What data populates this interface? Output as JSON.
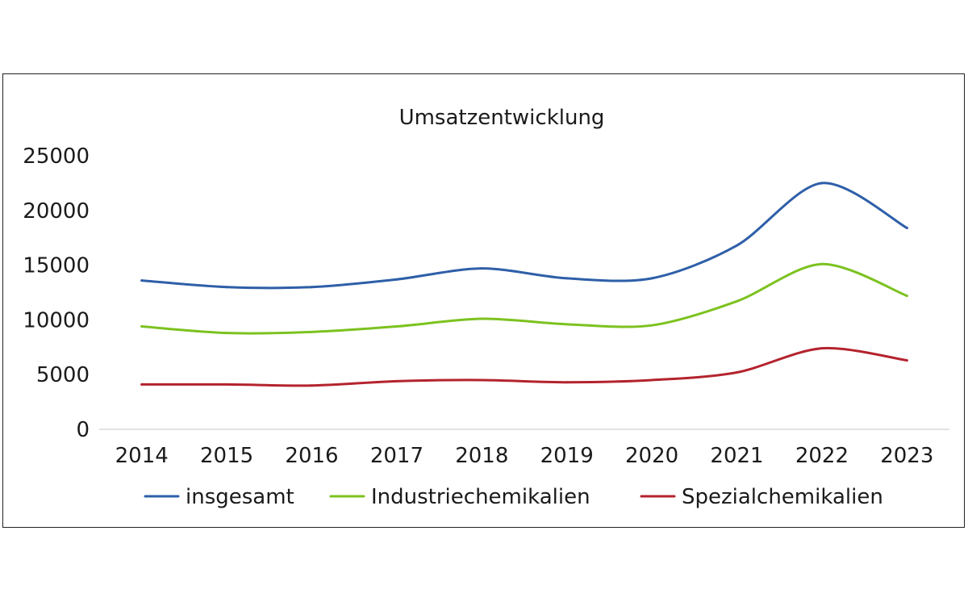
{
  "colors": {
    "insgesamt": "#2e5fa8",
    "industrie": "#7cc21f",
    "spezial": "#b4232e"
  },
  "chart_data": {
    "type": "line",
    "title": "Umsatzentwicklung",
    "xlabel": "",
    "ylabel": "",
    "categories": [
      "2014",
      "2015",
      "2016",
      "2017",
      "2018",
      "2019",
      "2020",
      "2021",
      "2022",
      "2023"
    ],
    "ylim": [
      0,
      25000
    ],
    "yticks": [
      "0",
      "5000",
      "10000",
      "15000",
      "20000",
      "25000"
    ],
    "grid": false,
    "legend_position": "bottom",
    "series": [
      {
        "name": "insgesamt",
        "color_key": "insgesamt",
        "values": [
          13600,
          13000,
          13000,
          13700,
          14700,
          13800,
          13800,
          16800,
          22500,
          18400
        ]
      },
      {
        "name": "Industriechemikalien",
        "color_key": "industrie",
        "values": [
          9400,
          8800,
          8900,
          9400,
          10100,
          9600,
          9500,
          11700,
          15100,
          12200
        ]
      },
      {
        "name": "Spezialchemikalien",
        "color_key": "spezial",
        "values": [
          4100,
          4100,
          4000,
          4400,
          4500,
          4300,
          4500,
          5200,
          7400,
          6300
        ]
      }
    ]
  }
}
